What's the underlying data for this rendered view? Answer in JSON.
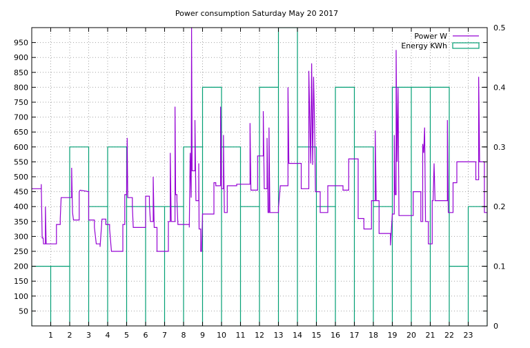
{
  "chart_data": {
    "type": "line",
    "title": "Power consumption Saturday May 20 2017",
    "x_ticks": [
      1,
      2,
      3,
      4,
      5,
      6,
      7,
      8,
      9,
      10,
      11,
      12,
      13,
      14,
      15,
      16,
      17,
      18,
      19,
      20,
      21,
      22,
      23
    ],
    "x_range": [
      0,
      24
    ],
    "y_range": [
      0,
      1000
    ],
    "y_ticks": [
      50,
      100,
      150,
      200,
      250,
      300,
      350,
      400,
      450,
      500,
      550,
      600,
      650,
      700,
      750,
      800,
      850,
      900,
      950
    ],
    "y2_range": [
      0,
      0.5
    ],
    "y2_ticks": [
      0,
      0.1,
      0.2,
      0.3,
      0.4,
      0.5
    ],
    "grid": true,
    "legend_position": "top-right",
    "colors": {
      "power": "#9400d3",
      "energy": "#009e73",
      "grid": "#a0a0a0"
    },
    "series": [
      {
        "name": "Power W",
        "style": "steps",
        "points": [
          [
            0.0,
            460
          ],
          [
            0.5,
            460
          ],
          [
            0.5,
            475
          ],
          [
            0.55,
            295
          ],
          [
            0.6,
            295
          ],
          [
            0.62,
            275
          ],
          [
            0.72,
            275
          ],
          [
            0.72,
            400
          ],
          [
            0.76,
            275
          ],
          [
            1.3,
            275
          ],
          [
            1.3,
            340
          ],
          [
            1.5,
            340
          ],
          [
            1.5,
            360
          ],
          [
            1.55,
            430
          ],
          [
            2.1,
            430
          ],
          [
            2.1,
            530
          ],
          [
            2.15,
            380
          ],
          [
            2.2,
            355
          ],
          [
            2.5,
            355
          ],
          [
            2.5,
            450
          ],
          [
            2.55,
            455
          ],
          [
            3.0,
            450
          ],
          [
            3.0,
            355
          ],
          [
            3.3,
            355
          ],
          [
            3.3,
            330
          ],
          [
            3.4,
            275
          ],
          [
            3.6,
            275
          ],
          [
            3.6,
            265
          ],
          [
            3.7,
            358
          ],
          [
            3.9,
            358
          ],
          [
            3.9,
            340
          ],
          [
            4.1,
            340
          ],
          [
            4.1,
            325
          ],
          [
            4.2,
            250
          ],
          [
            4.8,
            250
          ],
          [
            4.8,
            340
          ],
          [
            4.9,
            340
          ],
          [
            4.9,
            440
          ],
          [
            5.0,
            440
          ],
          [
            5.03,
            630
          ],
          [
            5.06,
            430
          ],
          [
            5.3,
            430
          ],
          [
            5.3,
            400
          ],
          [
            5.35,
            330
          ],
          [
            6.0,
            330
          ],
          [
            6.0,
            435
          ],
          [
            6.2,
            435
          ],
          [
            6.2,
            410
          ],
          [
            6.25,
            350
          ],
          [
            6.4,
            350
          ],
          [
            6.4,
            500
          ],
          [
            6.45,
            330
          ],
          [
            6.6,
            330
          ],
          [
            6.6,
            250
          ],
          [
            7.2,
            250
          ],
          [
            7.2,
            350
          ],
          [
            7.3,
            350
          ],
          [
            7.3,
            580
          ],
          [
            7.35,
            350
          ],
          [
            7.55,
            350
          ],
          [
            7.55,
            735
          ],
          [
            7.58,
            440
          ],
          [
            7.65,
            440
          ],
          [
            7.65,
            420
          ],
          [
            7.7,
            340
          ],
          [
            8.3,
            340
          ],
          [
            8.3,
            330
          ],
          [
            8.35,
            580
          ],
          [
            8.4,
            430
          ],
          [
            8.42,
            1000
          ],
          [
            8.45,
            520
          ],
          [
            8.6,
            520
          ],
          [
            8.6,
            690
          ],
          [
            8.65,
            420
          ],
          [
            8.8,
            420
          ],
          [
            8.8,
            545
          ],
          [
            8.82,
            325
          ],
          [
            8.9,
            325
          ],
          [
            8.9,
            250
          ],
          [
            8.95,
            250
          ],
          [
            9.0,
            375
          ],
          [
            9.6,
            375
          ],
          [
            9.6,
            480
          ],
          [
            9.7,
            480
          ],
          [
            9.7,
            470
          ],
          [
            9.95,
            470
          ],
          [
            9.95,
            735
          ],
          [
            10.0,
            460
          ],
          [
            10.1,
            460
          ],
          [
            10.1,
            640
          ],
          [
            10.15,
            380
          ],
          [
            10.3,
            380
          ],
          [
            10.3,
            470
          ],
          [
            10.8,
            470
          ],
          [
            10.8,
            475
          ],
          [
            11.5,
            475
          ],
          [
            11.5,
            680
          ],
          [
            11.55,
            455
          ],
          [
            11.9,
            455
          ],
          [
            11.9,
            570
          ],
          [
            12.0,
            570
          ],
          [
            12.2,
            570
          ],
          [
            12.2,
            720
          ],
          [
            12.25,
            460
          ],
          [
            12.4,
            460
          ],
          [
            12.4,
            630
          ],
          [
            12.45,
            380
          ],
          [
            12.5,
            380
          ],
          [
            12.5,
            665
          ],
          [
            12.55,
            380
          ],
          [
            13.0,
            380
          ],
          [
            13.0,
            395
          ],
          [
            13.1,
            470
          ],
          [
            13.5,
            470
          ],
          [
            13.5,
            800
          ],
          [
            13.55,
            545
          ],
          [
            14.2,
            545
          ],
          [
            14.2,
            460
          ],
          [
            14.6,
            460
          ],
          [
            14.6,
            855
          ],
          [
            14.7,
            545
          ],
          [
            14.75,
            880
          ],
          [
            14.8,
            540
          ],
          [
            14.85,
            835
          ],
          [
            14.9,
            680
          ],
          [
            14.95,
            450
          ],
          [
            15.2,
            450
          ],
          [
            15.2,
            380
          ],
          [
            15.6,
            380
          ],
          [
            15.6,
            470
          ],
          [
            16.4,
            470
          ],
          [
            16.4,
            455
          ],
          [
            16.7,
            455
          ],
          [
            16.7,
            560
          ],
          [
            17.2,
            560
          ],
          [
            17.2,
            360
          ],
          [
            17.5,
            360
          ],
          [
            17.5,
            325
          ],
          [
            17.9,
            325
          ],
          [
            17.9,
            420
          ],
          [
            18.1,
            420
          ],
          [
            18.1,
            655
          ],
          [
            18.15,
            420
          ],
          [
            18.3,
            420
          ],
          [
            18.3,
            310
          ],
          [
            18.9,
            310
          ],
          [
            18.9,
            270
          ],
          [
            19.0,
            375
          ],
          [
            19.1,
            375
          ],
          [
            19.1,
            640
          ],
          [
            19.15,
            440
          ],
          [
            19.2,
            440
          ],
          [
            19.2,
            925
          ],
          [
            19.25,
            550
          ],
          [
            19.3,
            800
          ],
          [
            19.35,
            370
          ],
          [
            20.1,
            370
          ],
          [
            20.1,
            450
          ],
          [
            20.5,
            450
          ],
          [
            20.5,
            350
          ],
          [
            20.6,
            350
          ],
          [
            20.6,
            610
          ],
          [
            20.65,
            580
          ],
          [
            20.7,
            665
          ],
          [
            20.75,
            350
          ],
          [
            20.9,
            350
          ],
          [
            20.9,
            275
          ],
          [
            21.0,
            275
          ],
          [
            21.1,
            275
          ],
          [
            21.1,
            420
          ],
          [
            21.15,
            420
          ],
          [
            21.2,
            545
          ],
          [
            21.25,
            420
          ],
          [
            21.9,
            420
          ],
          [
            21.9,
            690
          ],
          [
            21.95,
            380
          ],
          [
            22.2,
            380
          ],
          [
            22.2,
            480
          ],
          [
            22.4,
            480
          ],
          [
            22.4,
            550
          ],
          [
            23.4,
            550
          ],
          [
            23.4,
            490
          ],
          [
            23.55,
            490
          ],
          [
            23.55,
            835
          ],
          [
            23.6,
            550
          ],
          [
            23.85,
            550
          ],
          [
            23.85,
            380
          ],
          [
            24.0,
            380
          ]
        ]
      },
      {
        "name": "Energy KWh",
        "style": "histeps",
        "values": [
          0.1,
          0.1,
          0.3,
          0.2,
          0.3,
          0.2,
          0.2,
          0.2,
          0.3,
          0.4,
          0.3,
          0.2,
          0.4,
          0.5,
          0.3,
          0.2,
          0.4,
          0.3,
          0.2,
          0.4,
          0.4,
          0.4,
          0.1,
          0.2
        ]
      }
    ]
  }
}
